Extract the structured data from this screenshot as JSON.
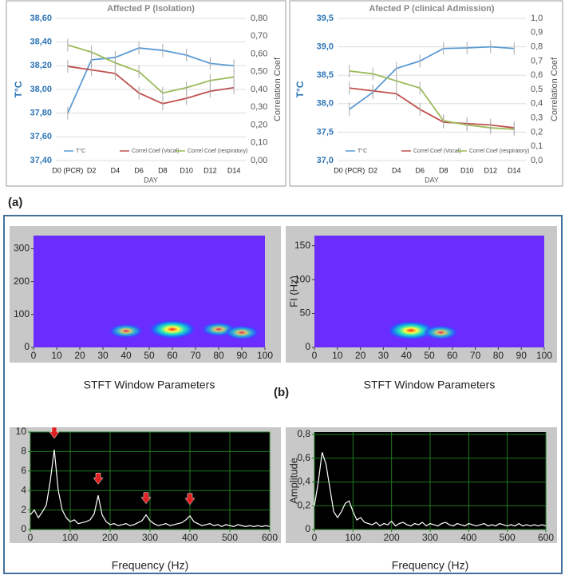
{
  "figure_labels": [
    "(a)",
    "(b)"
  ],
  "chart_data": [
    {
      "type": "line",
      "title": "Affected P (Isolation)",
      "xlabel": "DAY",
      "ylabel": "T°C",
      "y2label": "Correlation Coef",
      "categories": [
        "D0 (PCR)",
        "D2",
        "D4",
        "D6",
        "D8",
        "D10",
        "D12",
        "D14"
      ],
      "ylim": [
        37.4,
        38.6
      ],
      "yticks": [
        {
          "value": 37.4,
          "label": "37,40"
        },
        {
          "value": 37.6,
          "label": "37,60"
        },
        {
          "value": 37.8,
          "label": "37,80"
        },
        {
          "value": 38.0,
          "label": "38,00"
        },
        {
          "value": 38.2,
          "label": "38,20"
        },
        {
          "value": 38.4,
          "label": "38,40"
        },
        {
          "value": 38.6,
          "label": "38,60"
        }
      ],
      "y2lim": [
        0,
        0.8
      ],
      "y2ticks": [
        {
          "value": 0,
          "label": "0,00"
        },
        {
          "value": 0.1,
          "label": "0,10"
        },
        {
          "value": 0.2,
          "label": "0,20"
        },
        {
          "value": 0.3,
          "label": "0,30"
        },
        {
          "value": 0.4,
          "label": "0,40"
        },
        {
          "value": 0.5,
          "label": "0,50"
        },
        {
          "value": 0.6,
          "label": "0,60"
        },
        {
          "value": 0.7,
          "label": "0,70"
        },
        {
          "value": 0.8,
          "label": "0,80"
        }
      ],
      "grid": true,
      "series": [
        {
          "name": "T°C",
          "color": "#5b9bd5",
          "values": [
            37.8,
            38.25,
            38.27,
            38.35,
            38.33,
            38.29,
            38.22,
            38.2
          ]
        },
        {
          "name": "Correl Coef (Vocal)",
          "color": "#c0504d",
          "axis": "y2",
          "values": [
            0.53,
            0.51,
            0.49,
            0.38,
            0.32,
            0.35,
            0.39,
            0.41
          ]
        },
        {
          "name": "Correl Coef (respiratory)",
          "color": "#9bbb59",
          "axis": "y2",
          "values": [
            0.65,
            0.61,
            0.55,
            0.5,
            0.38,
            0.41,
            0.45,
            0.47
          ]
        }
      ]
    },
    {
      "type": "line",
      "title": "Afected P (clinical Admission)",
      "xlabel": "DAY",
      "ylabel": "T°C",
      "y2label": "Correlation Coef",
      "categories": [
        "D0 (PCR)",
        "D2",
        "D4",
        "D6",
        "D8",
        "D10",
        "D12",
        "D14"
      ],
      "ylim": [
        37.0,
        39.5
      ],
      "yticks": [
        {
          "value": 37.0,
          "label": "37,0"
        },
        {
          "value": 37.5,
          "label": "37,5"
        },
        {
          "value": 38.0,
          "label": "38,0"
        },
        {
          "value": 38.5,
          "label": "38,5"
        },
        {
          "value": 39.0,
          "label": "39,0"
        },
        {
          "value": 39.5,
          "label": "39,5"
        }
      ],
      "y2lim": [
        0,
        1.0
      ],
      "y2ticks": [
        {
          "value": 0,
          "label": "0,0"
        },
        {
          "value": 0.1,
          "label": "0,1"
        },
        {
          "value": 0.2,
          "label": "0,2"
        },
        {
          "value": 0.3,
          "label": "0,3"
        },
        {
          "value": 0.4,
          "label": "0,4"
        },
        {
          "value": 0.5,
          "label": "0,5"
        },
        {
          "value": 0.6,
          "label": "0,6"
        },
        {
          "value": 0.7,
          "label": "0,7"
        },
        {
          "value": 0.8,
          "label": "0,8"
        },
        {
          "value": 0.9,
          "label": "0,9"
        },
        {
          "value": 1.0,
          "label": "1,0"
        }
      ],
      "grid": true,
      "series": [
        {
          "name": "T°C",
          "color": "#5b9bd5",
          "values": [
            37.9,
            38.2,
            38.62,
            38.75,
            38.97,
            38.98,
            39.0,
            38.97
          ]
        },
        {
          "name": "Correl Coef (Vocal)",
          "color": "#c0504d",
          "axis": "y2",
          "values": [
            0.51,
            0.49,
            0.47,
            0.36,
            0.27,
            0.26,
            0.25,
            0.23
          ]
        },
        {
          "name": "Correl Coef (respiratory)",
          "color": "#9bbb59",
          "axis": "y2",
          "values": [
            0.63,
            0.61,
            0.56,
            0.51,
            0.28,
            0.25,
            0.23,
            0.22
          ]
        }
      ]
    },
    {
      "type": "spectrogram",
      "xlabel": "STFT Window Parameters",
      "xlim": [
        0,
        100
      ],
      "xticks": [
        0,
        10,
        20,
        30,
        40,
        50,
        60,
        70,
        80,
        90,
        100
      ],
      "ylim": [
        0,
        340
      ],
      "yticks": [
        0,
        100,
        200,
        300
      ],
      "hotspots": {
        "x": [
          60,
          80,
          40,
          90
        ],
        "y": [
          55,
          55,
          50,
          45
        ]
      }
    },
    {
      "type": "spectrogram",
      "xlabel": "STFT Window Parameters",
      "ylabel": "FI (Hz)",
      "xlim": [
        0,
        100
      ],
      "xticks": [
        0,
        10,
        20,
        30,
        40,
        50,
        60,
        70,
        80,
        90,
        100
      ],
      "ylim": [
        0,
        165
      ],
      "yticks": [
        0,
        50,
        100,
        150
      ],
      "hotspots": {
        "x": [
          42,
          55
        ],
        "y": [
          25,
          22
        ]
      }
    },
    {
      "type": "trace",
      "xlabel": "Frequency (Hz)",
      "xlim": [
        0,
        600
      ],
      "xticks": [
        0,
        100,
        200,
        300,
        400,
        500,
        600
      ],
      "ylim": [
        0,
        10
      ],
      "yticks": [
        0,
        2,
        4,
        6,
        8,
        10
      ],
      "arrows_x": [
        60,
        170,
        290,
        400
      ],
      "x": [
        0,
        10,
        20,
        30,
        40,
        50,
        60,
        70,
        80,
        90,
        100,
        110,
        120,
        130,
        140,
        150,
        160,
        170,
        180,
        190,
        200,
        210,
        220,
        230,
        240,
        250,
        260,
        270,
        280,
        290,
        300,
        310,
        320,
        330,
        340,
        350,
        360,
        370,
        380,
        390,
        400,
        410,
        420,
        430,
        440,
        450,
        460,
        470,
        480,
        490,
        500,
        510,
        520,
        530,
        540,
        550,
        560,
        570,
        580,
        590,
        600
      ],
      "values": [
        1.5,
        2,
        1.2,
        1.8,
        2.5,
        5,
        8.2,
        4,
        2,
        1.2,
        0.8,
        1,
        0.6,
        0.7,
        0.8,
        1,
        1.6,
        3.5,
        1.5,
        0.8,
        0.5,
        0.6,
        0.4,
        0.5,
        0.6,
        0.4,
        0.5,
        0.7,
        0.9,
        1.5,
        0.9,
        0.6,
        0.4,
        0.5,
        0.6,
        0.4,
        0.5,
        0.6,
        0.7,
        1,
        1.4,
        0.8,
        0.6,
        0.4,
        0.5,
        0.6,
        0.4,
        0.5,
        0.3,
        0.5,
        0.4,
        0.3,
        0.5,
        0.4,
        0.3,
        0.4,
        0.3,
        0.4,
        0.3,
        0.4,
        0.3
      ]
    },
    {
      "type": "trace",
      "xlabel": "Frequency (Hz)",
      "ylabel": "Amplitude",
      "xlim": [
        0,
        600
      ],
      "xticks": [
        0,
        100,
        200,
        300,
        400,
        500,
        600
      ],
      "ylim": [
        0,
        0.82
      ],
      "yticks": [
        0,
        {
          "value": 0.2,
          "label": "0,2"
        },
        {
          "value": 0.4,
          "label": "0,4"
        },
        {
          "value": 0.6,
          "label": "0,6"
        },
        {
          "value": 0.8,
          "label": "0,8"
        }
      ],
      "x": [
        0,
        10,
        20,
        30,
        40,
        50,
        60,
        70,
        80,
        90,
        100,
        110,
        120,
        130,
        140,
        150,
        160,
        170,
        180,
        190,
        200,
        210,
        220,
        230,
        240,
        250,
        260,
        270,
        280,
        290,
        300,
        310,
        320,
        330,
        340,
        350,
        360,
        370,
        380,
        390,
        400,
        410,
        420,
        430,
        440,
        450,
        460,
        470,
        480,
        490,
        500,
        510,
        520,
        530,
        540,
        550,
        560,
        570,
        580,
        590,
        600
      ],
      "values": [
        0.2,
        0.4,
        0.65,
        0.55,
        0.35,
        0.15,
        0.1,
        0.15,
        0.22,
        0.24,
        0.15,
        0.08,
        0.1,
        0.06,
        0.05,
        0.04,
        0.06,
        0.03,
        0.05,
        0.04,
        0.07,
        0.03,
        0.05,
        0.06,
        0.04,
        0.03,
        0.05,
        0.04,
        0.06,
        0.03,
        0.05,
        0.04,
        0.03,
        0.05,
        0.06,
        0.04,
        0.03,
        0.05,
        0.04,
        0.03,
        0.05,
        0.04,
        0.03,
        0.04,
        0.05,
        0.03,
        0.04,
        0.03,
        0.05,
        0.04,
        0.03,
        0.04,
        0.03,
        0.05,
        0.03,
        0.04,
        0.03,
        0.04,
        0.03,
        0.04,
        0.03
      ]
    }
  ]
}
